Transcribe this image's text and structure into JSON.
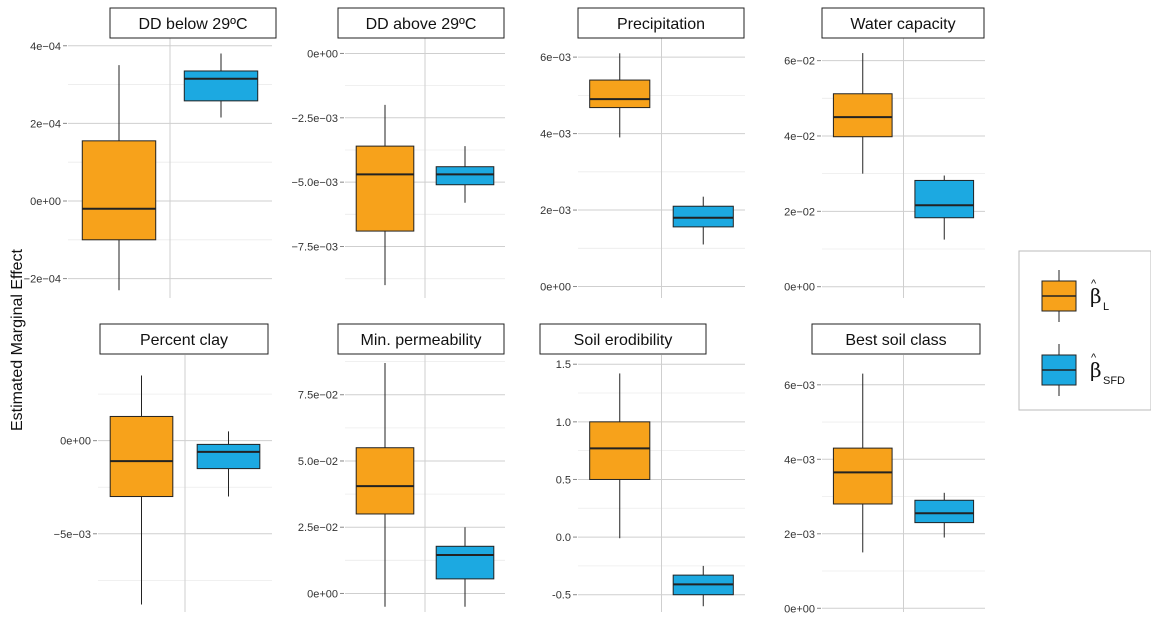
{
  "chart_data": {
    "type": "box",
    "ylabel": "Estimated Marginal Effect",
    "series": [
      {
        "name": "β̂L",
        "symbol": "β",
        "subscript": "L",
        "color": "#F7A21B"
      },
      {
        "name": "β̂SFD",
        "symbol": "β",
        "subscript": "SFD",
        "color": "#1CA9E1"
      }
    ],
    "panels": [
      {
        "title": "DD below 29ºC",
        "ylim": [
          -0.00025,
          0.00042
        ],
        "ticks": [
          -0.0002,
          0,
          0.0002,
          0.0004
        ],
        "tick_labels": [
          "−2e−04",
          "0e+00",
          "2e−04",
          "4e−04"
        ],
        "boxes": [
          {
            "min": -0.00023,
            "q1": -0.0001,
            "median": -2e-05,
            "q3": 0.000155,
            "max": 0.00035
          },
          {
            "min": 0.000215,
            "q1": 0.000258,
            "median": 0.000315,
            "q3": 0.000335,
            "max": 0.00038
          }
        ]
      },
      {
        "title": "DD above 29ºC",
        "ylim": [
          -0.0095,
          0.0006
        ],
        "ticks": [
          0,
          -0.0025,
          -0.005,
          -0.0075
        ],
        "tick_labels": [
          "0e+00",
          "−2.5e−03",
          "−5.0e−03",
          "−7.5e−03"
        ],
        "boxes": [
          {
            "min": -0.009,
            "q1": -0.0069,
            "median": -0.0047,
            "q3": -0.0036,
            "max": -0.002
          },
          {
            "min": -0.0058,
            "q1": -0.0051,
            "median": -0.0047,
            "q3": -0.0044,
            "max": -0.0036
          }
        ]
      },
      {
        "title": "Precipitation",
        "ylim": [
          -0.0003,
          0.0065
        ],
        "ticks": [
          0,
          0.002,
          0.004,
          0.006
        ],
        "tick_labels": [
          "0e+00",
          "2e−03",
          "4e−03",
          "6e−03"
        ],
        "boxes": [
          {
            "min": 0.0039,
            "q1": 0.00468,
            "median": 0.0049,
            "q3": 0.0054,
            "max": 0.0061
          },
          {
            "min": 0.0011,
            "q1": 0.00156,
            "median": 0.0018,
            "q3": 0.0021,
            "max": 0.00235
          }
        ]
      },
      {
        "title": "Water capacity",
        "ylim": [
          -0.003,
          0.066
        ],
        "ticks": [
          0,
          0.02,
          0.04,
          0.06
        ],
        "tick_labels": [
          "0e+00",
          "2e−02",
          "4e−02",
          "6e−02"
        ],
        "boxes": [
          {
            "min": 0.03,
            "q1": 0.0398,
            "median": 0.045,
            "q3": 0.0512,
            "max": 0.062
          },
          {
            "min": 0.0125,
            "q1": 0.0183,
            "median": 0.0216,
            "q3": 0.0282,
            "max": 0.0295
          }
        ]
      },
      {
        "title": "Percent clay",
        "ylim": [
          -0.0092,
          0.0046
        ],
        "ticks": [
          0,
          -0.005
        ],
        "tick_labels": [
          "0e+00",
          "−5e−03"
        ],
        "boxes": [
          {
            "min": -0.0088,
            "q1": -0.003,
            "median": -0.0011,
            "q3": 0.0013,
            "max": 0.0035
          },
          {
            "min": -0.003,
            "q1": -0.0015,
            "median": -0.0006,
            "q3": -0.0002,
            "max": 0.0005
          }
        ]
      },
      {
        "title": "Min. permeability",
        "ylim": [
          -0.007,
          0.09
        ],
        "ticks": [
          0,
          0.025,
          0.05,
          0.075
        ],
        "tick_labels": [
          "0e+00",
          "2.5e−02",
          "5.0e−02",
          "7.5e−02"
        ],
        "boxes": [
          {
            "min": -0.005,
            "q1": 0.03,
            "median": 0.0405,
            "q3": 0.055,
            "max": 0.087
          },
          {
            "min": -0.005,
            "q1": 0.0055,
            "median": 0.0145,
            "q3": 0.0178,
            "max": 0.025
          }
        ]
      },
      {
        "title": "Soil erodibility",
        "ylim": [
          -0.65,
          1.58
        ],
        "ticks": [
          -0.5,
          0,
          0.5,
          1,
          1.5
        ],
        "tick_labels": [
          "-0.5",
          "0.0",
          "0.5",
          "1.0",
          "1.5"
        ],
        "boxes": [
          {
            "min": -0.01,
            "q1": 0.5,
            "median": 0.77,
            "q3": 1.0,
            "max": 1.42
          },
          {
            "min": -0.6,
            "q1": -0.5,
            "median": -0.41,
            "q3": -0.33,
            "max": -0.25
          }
        ]
      },
      {
        "title": "Best soil class",
        "ylim": [
          -0.0001,
          0.0068
        ],
        "ticks": [
          0,
          0.002,
          0.004,
          0.006
        ],
        "tick_labels": [
          "0e+00",
          "2e−03",
          "4e−03",
          "6e−03"
        ],
        "boxes": [
          {
            "min": 0.0015,
            "q1": 0.0028,
            "median": 0.00365,
            "q3": 0.0043,
            "max": 0.0063
          },
          {
            "min": 0.0019,
            "q1": 0.0023,
            "median": 0.00255,
            "q3": 0.0029,
            "max": 0.0031
          }
        ]
      }
    ]
  }
}
